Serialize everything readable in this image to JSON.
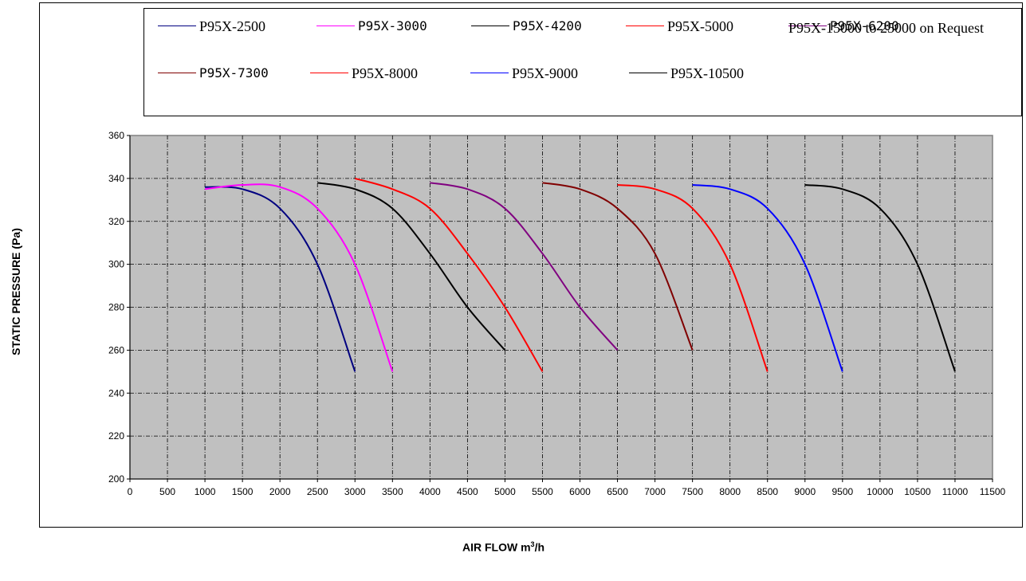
{
  "chart_data": {
    "type": "line",
    "title": "",
    "xlabel": "AIR FLOW m",
    "xlabel_sup": "3",
    "xlabel_suffix": "/h",
    "ylabel": "STATIC PRESSURE (Pa)",
    "xlim": [
      0,
      11500
    ],
    "ylim": [
      200,
      360
    ],
    "xticks": [
      0,
      500,
      1000,
      1500,
      2000,
      2500,
      3000,
      3500,
      4000,
      4500,
      5000,
      5500,
      6000,
      6500,
      7000,
      7500,
      8000,
      8500,
      9000,
      9500,
      10000,
      10500,
      11000,
      11500
    ],
    "yticks": [
      200,
      220,
      240,
      260,
      280,
      300,
      320,
      340,
      360
    ],
    "grid": true,
    "plot_background": "#c0c0c0",
    "legend_placement": "top",
    "legend_note": "P95X-15000 to 25000 on Request",
    "series": [
      {
        "name": "P95X-2500",
        "color": "#000080",
        "x": [
          1000,
          1500,
          2000,
          2500,
          3000
        ],
        "y": [
          336,
          335,
          326,
          300,
          250
        ]
      },
      {
        "name": "P95X-3000",
        "color": "#ff00ff",
        "x": [
          1000,
          1500,
          2000,
          2500,
          3000,
          3500
        ],
        "y": [
          335,
          337,
          336,
          326,
          300,
          250
        ]
      },
      {
        "name": "P95X-4200",
        "color": "#000000",
        "x": [
          2500,
          3000,
          3500,
          4000,
          4500,
          5000
        ],
        "y": [
          338,
          335,
          326,
          305,
          280,
          260
        ]
      },
      {
        "name": "P95X-5000",
        "color": "#ff0000",
        "x": [
          3000,
          3500,
          4000,
          4500,
          5000,
          5500
        ],
        "y": [
          340,
          335,
          326,
          305,
          280,
          250
        ]
      },
      {
        "name": "P95X-6200",
        "color": "#800080",
        "x": [
          4000,
          4500,
          5000,
          5500,
          6000,
          6500
        ],
        "y": [
          338,
          335,
          326,
          305,
          280,
          260
        ]
      },
      {
        "name": "P95X-7300",
        "color": "#800000",
        "x": [
          5500,
          6000,
          6500,
          7000,
          7500
        ],
        "y": [
          338,
          335,
          326,
          305,
          260
        ]
      },
      {
        "name": "P95X-8000",
        "color": "#ff0000",
        "x": [
          6500,
          7000,
          7500,
          8000,
          8500
        ],
        "y": [
          337,
          335,
          326,
          300,
          250
        ]
      },
      {
        "name": "P95X-9000",
        "color": "#0000ff",
        "x": [
          7500,
          8000,
          8500,
          9000,
          9500
        ],
        "y": [
          337,
          335,
          326,
          300,
          250
        ]
      },
      {
        "name": "P95X-10500",
        "color": "#000000",
        "x": [
          9000,
          9500,
          10000,
          10500,
          11000
        ],
        "y": [
          337,
          335,
          326,
          300,
          250
        ]
      }
    ]
  }
}
